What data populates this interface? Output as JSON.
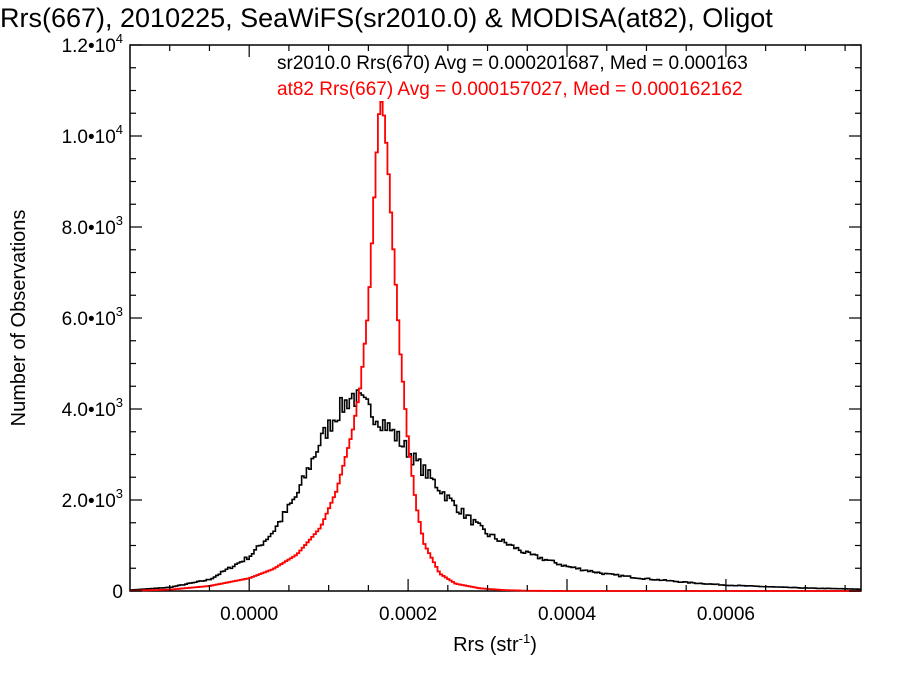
{
  "chart_data": {
    "type": "line",
    "title": "Rrs(667), 2010225, SeaWiFS(sr2010.0) & MODISA(at82), Oligot",
    "xlabel": "Rrs (str",
    "xlabel_sup": "-1",
    "xlabel_end": ")",
    "ylabel": "Number of Observations",
    "xlim": [
      -0.00015,
      0.00077
    ],
    "ylim": [
      0,
      12000
    ],
    "x_ticks": [
      0.0,
      0.0002,
      0.0004,
      0.0006
    ],
    "x_tick_labels": [
      "0.0000",
      "0.0002",
      "0.0004",
      "0.0006"
    ],
    "y_ticks": [
      {
        "value": 0,
        "mantissa": "0",
        "exp": ""
      },
      {
        "value": 2000,
        "mantissa": "2.0•10",
        "exp": "3"
      },
      {
        "value": 4000,
        "mantissa": "4.0•10",
        "exp": "3"
      },
      {
        "value": 6000,
        "mantissa": "6.0•10",
        "exp": "3"
      },
      {
        "value": 8000,
        "mantissa": "8.0•10",
        "exp": "3"
      },
      {
        "value": 10000,
        "mantissa": "1.0•10",
        "exp": "4"
      },
      {
        "value": 12000,
        "mantissa": "1.2•10",
        "exp": "4"
      }
    ],
    "grid": false,
    "legend_position": "top",
    "series": [
      {
        "label": "sr2010.0 Rrs(670) Avg = 0.000201687, Med = 0.000163",
        "color": "#000000",
        "style": "noisy-step",
        "points": [
          [
            -0.00015,
            20
          ],
          [
            -0.0001,
            80
          ],
          [
            -5e-05,
            250
          ],
          [
            0.0,
            750
          ],
          [
            3e-05,
            1300
          ],
          [
            6e-05,
            2100
          ],
          [
            9e-05,
            3300
          ],
          [
            0.00011,
            3900
          ],
          [
            0.00013,
            4300
          ],
          [
            0.00015,
            4000
          ],
          [
            0.00017,
            3700
          ],
          [
            0.00019,
            3300
          ],
          [
            0.00021,
            2850
          ],
          [
            0.00023,
            2450
          ],
          [
            0.00025,
            2050
          ],
          [
            0.00027,
            1700
          ],
          [
            0.0003,
            1250
          ],
          [
            0.00035,
            820
          ],
          [
            0.0004,
            540
          ],
          [
            0.00045,
            370
          ],
          [
            0.0005,
            270
          ],
          [
            0.00055,
            190
          ],
          [
            0.0006,
            130
          ],
          [
            0.00065,
            95
          ],
          [
            0.0007,
            65
          ],
          [
            0.00077,
            40
          ]
        ]
      },
      {
        "label": "at82 Rrs(667) Avg = 0.000157027, Med = 0.000162162",
        "color": "#ff0000",
        "style": "step",
        "points": [
          [
            -0.00015,
            5
          ],
          [
            -0.0001,
            30
          ],
          [
            -5e-05,
            110
          ],
          [
            0.0,
            280
          ],
          [
            3e-05,
            480
          ],
          [
            6e-05,
            800
          ],
          [
            9e-05,
            1400
          ],
          [
            0.00011,
            2200
          ],
          [
            0.00013,
            3500
          ],
          [
            0.00014,
            4500
          ],
          [
            0.00015,
            6200
          ],
          [
            0.000155,
            7800
          ],
          [
            0.00016,
            9500
          ],
          [
            0.000165,
            10900
          ],
          [
            0.00017,
            10400
          ],
          [
            0.000175,
            9300
          ],
          [
            0.00018,
            7900
          ],
          [
            0.00019,
            5300
          ],
          [
            0.0002,
            3300
          ],
          [
            0.00021,
            1900
          ],
          [
            0.00022,
            1050
          ],
          [
            0.00024,
            380
          ],
          [
            0.00026,
            160
          ],
          [
            0.00029,
            60
          ],
          [
            0.00032,
            20
          ],
          [
            0.00035,
            6
          ],
          [
            0.0004,
            0
          ],
          [
            0.00077,
            0
          ]
        ]
      }
    ]
  }
}
